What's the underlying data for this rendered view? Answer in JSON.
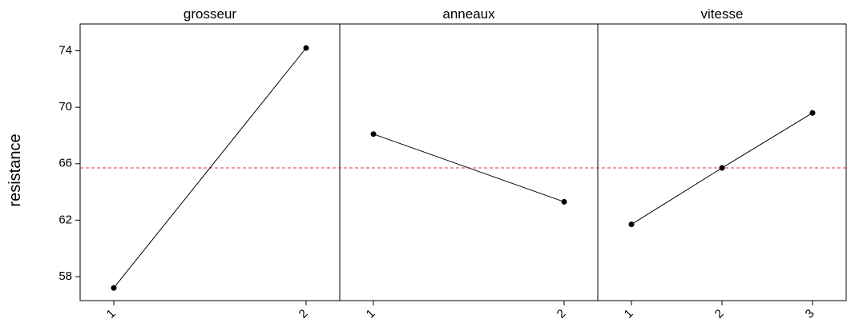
{
  "chart_data": {
    "type": "line",
    "ylabel": "resistance",
    "ylim": [
      56.3,
      75.9
    ],
    "y_ticks": [
      "74",
      "70",
      "66",
      "62",
      "58"
    ],
    "overall_mean": 65.7,
    "colors": {
      "mean_line": "#e03030",
      "series": "#000000"
    },
    "panels": [
      {
        "title": "grosseur",
        "x": [
          "1",
          "2"
        ],
        "values": [
          57.2,
          74.2
        ]
      },
      {
        "title": "anneaux",
        "x": [
          "1",
          "2"
        ],
        "values": [
          68.1,
          63.3
        ]
      },
      {
        "title": "vitesse",
        "x": [
          "1",
          "2",
          "3"
        ],
        "values": [
          61.7,
          65.7,
          69.6
        ]
      }
    ]
  }
}
